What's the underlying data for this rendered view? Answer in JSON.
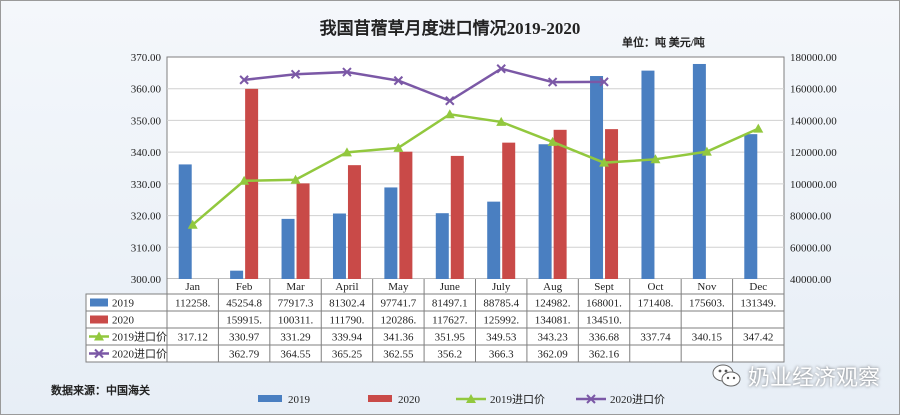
{
  "chart_data": {
    "type": "bar",
    "title": "我国苜蓿草月度进口情况2019-2020",
    "unit_label": "单位：吨  美元/吨",
    "source_label": "数据来源：中国海关",
    "categories": [
      "Jan",
      "Feb",
      "Mar",
      "April",
      "May",
      "June",
      "July",
      "Aug",
      "Sept",
      "Oct",
      "Nov",
      "Dec"
    ],
    "series": [
      {
        "name": "2019",
        "kind": "bar",
        "axis": "right",
        "color": "#4a7fc1",
        "values": [
          112258,
          45254.8,
          77917.3,
          81302.4,
          97741.7,
          81497.1,
          88785.4,
          124982,
          168001,
          171408,
          175603,
          131349
        ],
        "labels": [
          "112258.",
          "45254.8",
          "77917.3",
          "81302.4",
          "97741.7",
          "81497.1",
          "88785.4",
          "124982.",
          "168001.",
          "171408.",
          "175603.",
          "131349."
        ]
      },
      {
        "name": "2020",
        "kind": "bar",
        "axis": "right",
        "color": "#c94a48",
        "values": [
          null,
          159915,
          100311,
          111790,
          120286,
          117627,
          125992,
          134081,
          134510,
          null,
          null,
          null
        ],
        "labels": [
          "",
          "159915.",
          "100311.",
          "111790.",
          "120286.",
          "117627.",
          "125992.",
          "134081.",
          "134510.",
          "",
          "",
          ""
        ]
      },
      {
        "name": "2019进口价",
        "kind": "line",
        "axis": "left",
        "color": "#92c83e",
        "marker": "triangle",
        "values": [
          317.12,
          330.97,
          331.29,
          339.94,
          341.36,
          351.95,
          349.53,
          343.23,
          336.68,
          337.74,
          340.15,
          347.42
        ],
        "labels": [
          "317.12",
          "330.97",
          "331.29",
          "339.94",
          "341.36",
          "351.95",
          "349.53",
          "343.23",
          "336.68",
          "337.74",
          "340.15",
          "347.42"
        ]
      },
      {
        "name": "2020进口价",
        "kind": "line",
        "axis": "left",
        "color": "#7b58a6",
        "marker": "x",
        "values": [
          null,
          362.79,
          364.55,
          365.25,
          362.55,
          356.2,
          366.3,
          362.09,
          362.16,
          null,
          null,
          null
        ],
        "labels": [
          "",
          "362.79",
          "364.55",
          "365.25",
          "362.55",
          "356.2",
          "366.3",
          "362.09",
          "362.16",
          "",
          "",
          ""
        ]
      }
    ],
    "y_left": {
      "min": 300,
      "max": 370,
      "step": 10,
      "ticks": [
        "300.00",
        "310.00",
        "320.00",
        "330.00",
        "340.00",
        "350.00",
        "360.00",
        "370.00"
      ]
    },
    "y_right": {
      "min": 40000,
      "max": 180000,
      "step": 20000,
      "ticks": [
        "40000.00",
        "60000.00",
        "80000.00",
        "100000.00",
        "120000.00",
        "140000.00",
        "160000.00",
        "180000.00"
      ]
    },
    "grid": true,
    "legend_position": "bottom",
    "data_table": true
  },
  "watermark": {
    "text": "奶业经济观察",
    "icon": "wechat-icon"
  }
}
